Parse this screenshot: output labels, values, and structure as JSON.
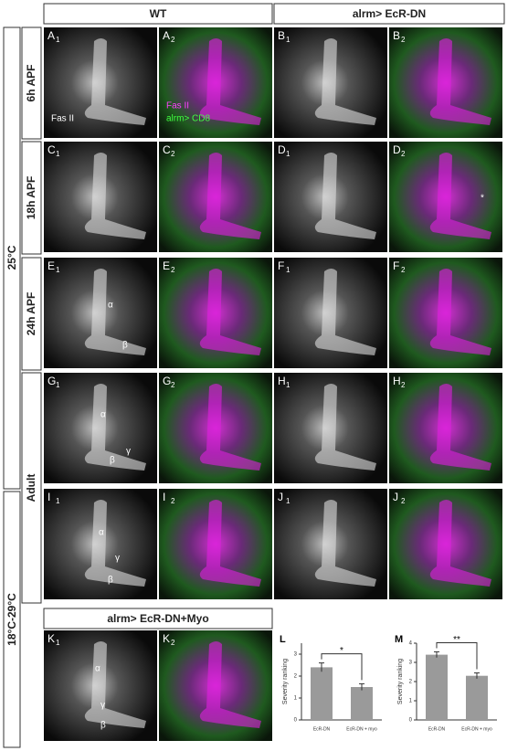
{
  "headers": [
    "WT",
    "alrm> EcR-DN"
  ],
  "temperatures": [
    "25°C",
    "18°C-29°C"
  ],
  "stages": [
    "6h APF",
    "18h APF",
    "24h APF",
    "Adult"
  ],
  "k_header": "alrm> EcR-DN+Myo",
  "panels": [
    {
      "letter": "A",
      "sub": "1",
      "annotations": [
        "Fas II"
      ]
    },
    {
      "letter": "A",
      "sub": "2",
      "annotations": [
        "Fas II",
        "alrm> CD8"
      ]
    },
    {
      "letter": "B",
      "sub": "1",
      "annotations": []
    },
    {
      "letter": "B",
      "sub": "2",
      "annotations": []
    },
    {
      "letter": "C",
      "sub": "1",
      "annotations": []
    },
    {
      "letter": "C",
      "sub": "2",
      "annotations": []
    },
    {
      "letter": "D",
      "sub": "1",
      "annotations": []
    },
    {
      "letter": "D",
      "sub": "2",
      "annotations": [
        "*"
      ]
    },
    {
      "letter": "E",
      "sub": "1",
      "annotations": [
        "α",
        "β"
      ]
    },
    {
      "letter": "E",
      "sub": "2",
      "annotations": []
    },
    {
      "letter": "F",
      "sub": "1",
      "annotations": []
    },
    {
      "letter": "F",
      "sub": "2",
      "annotations": []
    },
    {
      "letter": "G",
      "sub": "1",
      "annotations": [
        "α",
        "β",
        "γ"
      ]
    },
    {
      "letter": "G",
      "sub": "2",
      "annotations": []
    },
    {
      "letter": "H",
      "sub": "1",
      "annotations": []
    },
    {
      "letter": "H",
      "sub": "2",
      "annotations": []
    },
    {
      "letter": "I",
      "sub": "1",
      "annotations": [
        "α",
        "γ",
        "β"
      ]
    },
    {
      "letter": "I",
      "sub": "2",
      "annotations": []
    },
    {
      "letter": "J",
      "sub": "1",
      "annotations": []
    },
    {
      "letter": "J",
      "sub": "2",
      "annotations": []
    },
    {
      "letter": "K",
      "sub": "1",
      "annotations": [
        "α",
        "γ",
        "β"
      ]
    },
    {
      "letter": "K",
      "sub": "2",
      "annotations": []
    }
  ],
  "chart_data": [
    {
      "type": "bar",
      "title": "L",
      "ylabel": "Severity ranking",
      "categories": [
        "EcR-DN",
        "EcR-DN + myo"
      ],
      "values": [
        2.4,
        1.5
      ],
      "errors": [
        0.2,
        0.15
      ],
      "significance": "*",
      "color": "#9a9a9a",
      "ylim": [
        0,
        3.5
      ],
      "yticks": [
        0,
        1,
        2,
        3
      ]
    },
    {
      "type": "bar",
      "title": "M",
      "ylabel": "Severity ranking",
      "categories": [
        "EcR-DN",
        "EcR-DN + myo"
      ],
      "values": [
        3.4,
        2.3
      ],
      "errors": [
        0.15,
        0.15
      ],
      "significance": "**",
      "color": "#9a9a9a",
      "ylim": [
        0,
        4
      ],
      "yticks": [
        0,
        1,
        2,
        3,
        4
      ]
    }
  ]
}
